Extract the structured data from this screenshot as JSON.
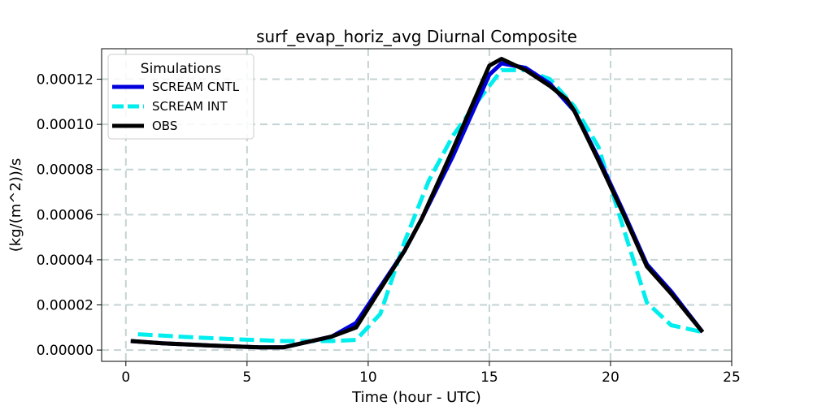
{
  "chart_data": {
    "type": "line",
    "title": "surf_evap_horiz_avg Diurnal Composite",
    "xlabel": "Time (hour - UTC)",
    "ylabel": "(kg/(m^2))/s",
    "xlim": [
      -1,
      25
    ],
    "ylim": [
      -5e-06,
      0.0001335
    ],
    "xticks": [
      0,
      5,
      10,
      15,
      20,
      25
    ],
    "xtick_labels": [
      "0",
      "5",
      "10",
      "15",
      "20",
      "25"
    ],
    "yticks": [
      0,
      2e-05,
      4e-05,
      6e-05,
      8e-05,
      0.0001,
      0.00012
    ],
    "ytick_labels": [
      "0.00000",
      "0.00002",
      "0.00004",
      "0.00006",
      "0.00008",
      "0.00010",
      "0.00012"
    ],
    "grid": true,
    "legend": {
      "title": "Simulations",
      "placement": "top-left"
    },
    "series": [
      {
        "name": "SCREAM CNTL",
        "color": "#0000dd",
        "style": "solid",
        "x": [
          0.2,
          1.5,
          3.5,
          5.5,
          6.5,
          8.5,
          9.5,
          10.5,
          11.5,
          12.2,
          13.5,
          15.0,
          15.5,
          16.5,
          17.5,
          18.5,
          19.5,
          20.5,
          21.5,
          22.5,
          23.8
        ],
        "y": [
          4e-06,
          3e-06,
          2e-06,
          1.2e-06,
          1.2e-06,
          6e-06,
          1.2e-05,
          2.8e-05,
          4.4e-05,
          5.8e-05,
          8.6e-05,
          0.000122,
          0.000127,
          0.000125,
          0.000118,
          0.000106,
          8.5e-05,
          6.2e-05,
          3.8e-05,
          2.6e-05,
          8e-06
        ]
      },
      {
        "name": "SCREAM INT",
        "color": "#00eeee",
        "style": "dashed",
        "x": [
          0.5,
          2.5,
          4.5,
          6.5,
          8.5,
          9.5,
          10.5,
          11.5,
          12.5,
          13.5,
          14.5,
          15.5,
          16.5,
          17.5,
          18.5,
          19.5,
          20.5,
          21.5,
          22.5,
          23.8
        ],
        "y": [
          7e-06,
          5.8e-06,
          4.8e-06,
          4e-06,
          4e-06,
          4.5e-06,
          1.6e-05,
          4.8e-05,
          7.5e-05,
          9.5e-05,
          0.00011,
          0.000124,
          0.000124,
          0.00012,
          0.000108,
          9e-05,
          5.5e-05,
          2.1e-05,
          1.1e-05,
          8e-06
        ]
      },
      {
        "name": "OBS",
        "color": "#000000",
        "style": "solid",
        "x": [
          0.2,
          1.5,
          3.5,
          5.5,
          6.5,
          8.5,
          9.5,
          10.5,
          11.5,
          12.2,
          13.5,
          15.0,
          15.5,
          16.5,
          17.5,
          18.2,
          18.5,
          19.5,
          20.5,
          21.5,
          22.5,
          23.8
        ],
        "y": [
          4e-06,
          3e-06,
          2e-06,
          1.2e-06,
          1.2e-06,
          6e-06,
          1e-05,
          2.7e-05,
          4.4e-05,
          5.8e-05,
          8.9e-05,
          0.000126,
          0.000129,
          0.000124,
          0.000117,
          0.000111,
          0.000106,
          8.4e-05,
          6.1e-05,
          3.7e-05,
          2.5e-05,
          8e-06
        ]
      }
    ]
  }
}
